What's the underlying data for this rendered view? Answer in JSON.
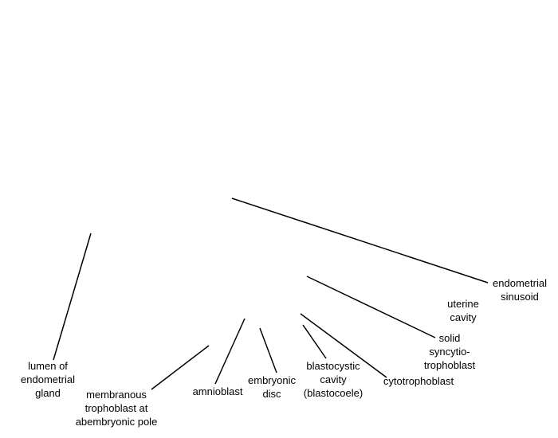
{
  "labels": {
    "lumen": "lumen of\nendometrial\ngland",
    "membranous": "membranous\ntrophoblast at\nabembryonic pole",
    "amnioblast": "amnioblast",
    "embryonic_disc": "embryonic\ndisc",
    "blastocystic_cavity": "blastocystic\ncavity\n(blastocoele)",
    "cytotrophoblast": "cytotrophoblast",
    "syncytiotrophoblast": "solid\nsyncytio-\ntrophoblast",
    "uterine_cavity": "uterine\ncavity",
    "endometrial_sinusoid": "endometrial\nsinusoid"
  },
  "colors": {
    "line": "#000000",
    "text": "#000000",
    "background": "#ffffff"
  }
}
